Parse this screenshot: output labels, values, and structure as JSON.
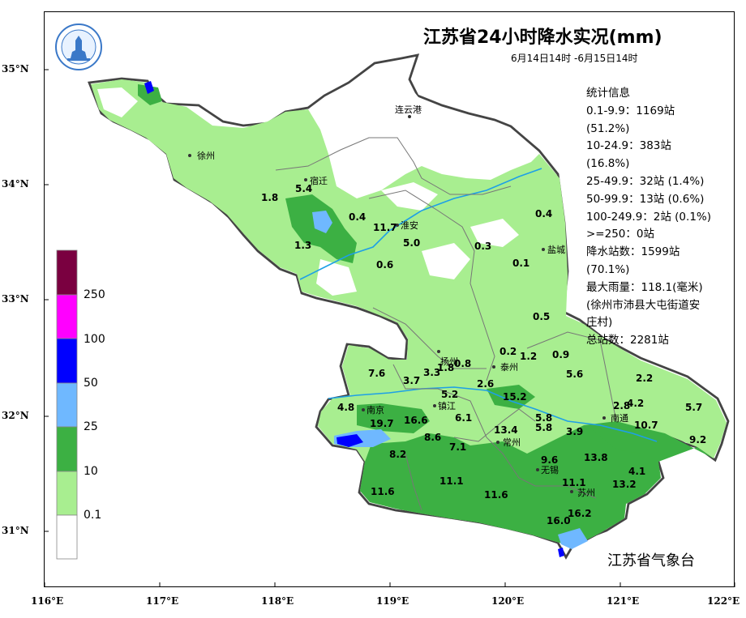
{
  "map": {
    "title": "江苏省24小时降水实况(mm)",
    "subtitle": "6月14日14时 -6月15日14时",
    "agency": "江苏省气象台",
    "statistics": [
      "统计信息",
      "0.1-9.9：1169站",
      "(51.2%)",
      "10-24.9：383站",
      "(16.8%)",
      "25-49.9：32站 (1.4%)",
      "50-99.9：13站 (0.6%)",
      "100-249.9：2站 (0.1%)",
      ">=250：0站",
      "降水站数：1599站",
      "(70.1%)",
      "最大雨量：118.1(毫米)",
      "(徐州市沛县大屯街道安",
      "庄村)",
      "总站数：2281站"
    ],
    "lat_labels": [
      "35°N",
      "34°N",
      "33°N",
      "32°N",
      "31°N"
    ],
    "lon_labels": [
      "116°E",
      "117°E",
      "118°E",
      "119°E",
      "120°E",
      "121°E",
      "122°E"
    ],
    "legend": {
      "labels": [
        "250",
        "100",
        "50",
        "25",
        "10",
        "0.1"
      ],
      "colors": [
        "#7a0040",
        "#ff00ff",
        "#0000ff",
        "#6fb8ff",
        "#3cb043",
        "#a8ee90",
        "#ffffff"
      ]
    },
    "colors": {
      "light_green": "#a8ee90",
      "green": "#3cb043",
      "light_blue": "#6fb8ff",
      "blue": "#0000ff",
      "river": "#1ea0e6",
      "border": "#444444"
    },
    "cities": [
      {
        "name": "连云港",
        "icon": "city-dot-icon"
      },
      {
        "name": "徐州",
        "icon": "city-dot-icon"
      },
      {
        "name": "宿迁",
        "icon": "city-dot-icon"
      },
      {
        "name": "淮安",
        "icon": "city-dot-icon"
      },
      {
        "name": "盐城",
        "icon": "city-dot-icon"
      },
      {
        "name": "扬州",
        "icon": "city-dot-icon"
      },
      {
        "name": "泰州",
        "icon": "city-dot-icon"
      },
      {
        "name": "南京",
        "icon": "city-dot-icon"
      },
      {
        "name": "镇江",
        "icon": "city-dot-icon"
      },
      {
        "name": "常州",
        "icon": "city-dot-icon"
      },
      {
        "name": "南通",
        "icon": "city-dot-icon"
      },
      {
        "name": "无锡",
        "icon": "city-dot-icon"
      },
      {
        "name": "苏州",
        "icon": "city-dot-icon"
      }
    ],
    "rainfall_values": [
      "5.4",
      "1.8",
      "0.4",
      "1.3",
      "11.7",
      "5.0",
      "0.6",
      "0.3",
      "0.4",
      "0.1",
      "0.5",
      "0.2",
      "1.2",
      "0.9",
      "5.6",
      "2.2",
      "3.3",
      "1.8",
      "0.8",
      "7.6",
      "3.7",
      "2.6",
      "5.2",
      "15.2",
      "4.8",
      "6.1",
      "2.8",
      "4.2",
      "5.7",
      "19.7",
      "16.6",
      "5.8",
      "10.7",
      "8.6",
      "13.4",
      "5.8",
      "3.9",
      "9.2",
      "7.1",
      "8.2",
      "9.6",
      "13.8",
      "4.1",
      "11.6",
      "11.1",
      "11.6",
      "11.1",
      "13.2",
      "16.2",
      "16.0"
    ]
  }
}
